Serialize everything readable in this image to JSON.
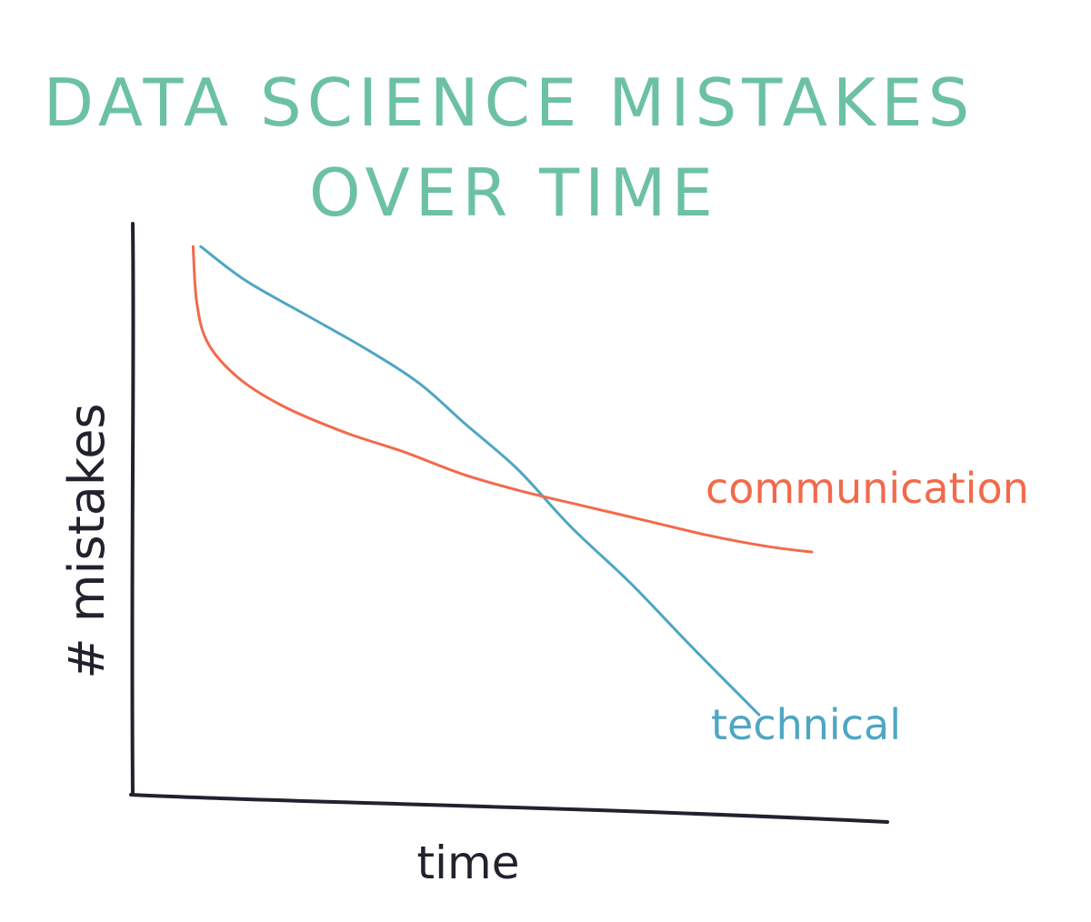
{
  "chart_data": {
    "type": "line",
    "title_lines": [
      "DATA SCIENCE MISTAKES",
      "OVER TIME"
    ],
    "xlabel": "time",
    "ylabel": "# mistakes",
    "grid": false,
    "legend": "none",
    "x_range": [
      0,
      10
    ],
    "y_range": [
      0,
      10
    ],
    "series": [
      {
        "name": "technical",
        "color": "#4ea6c3",
        "points": [
          [
            0.9,
            9.6
          ],
          [
            1.5,
            9.0
          ],
          [
            2.3,
            8.4
          ],
          [
            3.1,
            7.8
          ],
          [
            3.8,
            7.2
          ],
          [
            4.4,
            6.5
          ],
          [
            5.1,
            5.7
          ],
          [
            5.8,
            4.7
          ],
          [
            6.6,
            3.7
          ],
          [
            7.4,
            2.6
          ],
          [
            8.3,
            1.4
          ]
        ]
      },
      {
        "name": "communication",
        "color": "#f26a4b",
        "points": [
          [
            0.8,
            9.6
          ],
          [
            0.85,
            8.6
          ],
          [
            1.0,
            7.9
          ],
          [
            1.4,
            7.3
          ],
          [
            2.0,
            6.8
          ],
          [
            2.8,
            6.35
          ],
          [
            3.6,
            6.0
          ],
          [
            4.4,
            5.6
          ],
          [
            5.2,
            5.3
          ],
          [
            6.0,
            5.05
          ],
          [
            6.8,
            4.8
          ],
          [
            7.6,
            4.55
          ],
          [
            8.4,
            4.35
          ],
          [
            9.0,
            4.25
          ]
        ]
      }
    ],
    "title_color": "#6cc1a4",
    "axis_color": "#23212e"
  }
}
